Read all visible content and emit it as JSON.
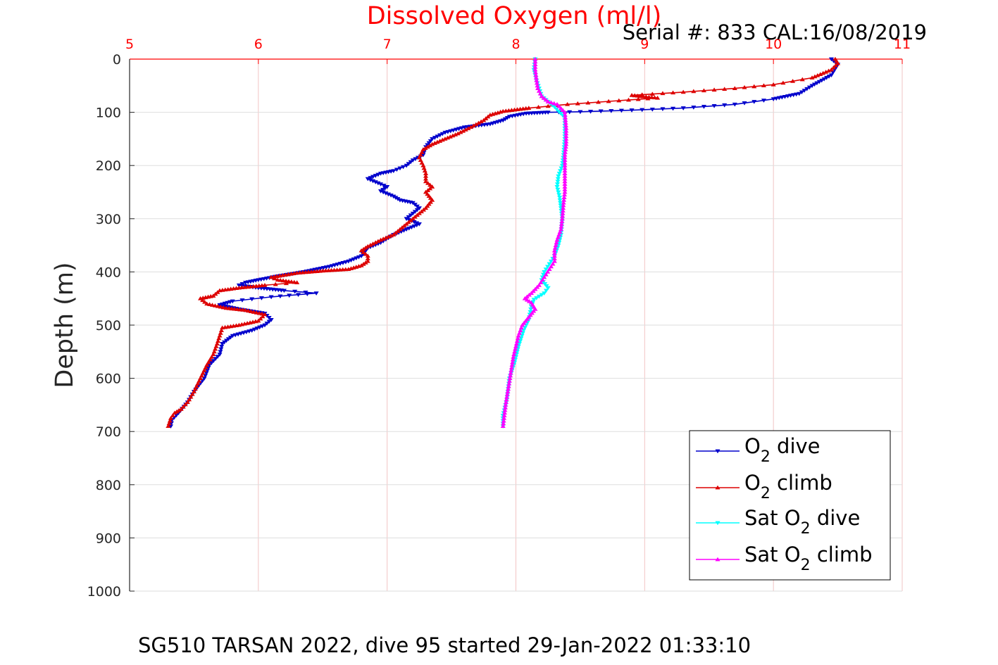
{
  "chart_data": {
    "type": "line",
    "title": "Dissolved Oxygen (ml/l)",
    "serial_text": "Serial #: 833  CAL:16/08/2019",
    "ylabel": "Depth (m)",
    "caption": "SG510 TARSAN 2022, dive 95 started 29-Jan-2022 01:33:10",
    "x_axis": {
      "position": "top",
      "range": [
        5,
        11
      ],
      "ticks": [
        "5",
        "6",
        "7",
        "8",
        "9",
        "10",
        "11"
      ],
      "color": "#ff0000"
    },
    "y_axis": {
      "reversed": true,
      "range": [
        0,
        1000
      ],
      "ticks": [
        "0",
        "100",
        "200",
        "300",
        "400",
        "500",
        "600",
        "700",
        "800",
        "900",
        "1000"
      ]
    },
    "grid": true,
    "legend": {
      "placement": "lower-right",
      "entries": [
        {
          "prefix": "O",
          "sub": "2",
          "suffix": " dive"
        },
        {
          "prefix": "O",
          "sub": "2",
          "suffix": " climb"
        },
        {
          "prefix": "Sat O",
          "sub": "2",
          "suffix": " dive"
        },
        {
          "prefix": "Sat O",
          "sub": "2",
          "suffix": " climb"
        }
      ]
    },
    "series": [
      {
        "color": "#0000cc",
        "marker": "triangle-down",
        "points": [
          [
            10.45,
            0
          ],
          [
            10.5,
            10
          ],
          [
            10.45,
            30
          ],
          [
            10.3,
            50
          ],
          [
            10.2,
            65
          ],
          [
            10.0,
            75
          ],
          [
            9.7,
            85
          ],
          [
            9.3,
            92
          ],
          [
            8.9,
            96
          ],
          [
            8.5,
            99
          ],
          [
            8.25,
            100
          ],
          [
            8.08,
            102
          ],
          [
            7.95,
            108
          ],
          [
            7.9,
            115
          ],
          [
            7.8,
            122
          ],
          [
            7.6,
            128
          ],
          [
            7.45,
            138
          ],
          [
            7.35,
            150
          ],
          [
            7.3,
            165
          ],
          [
            7.28,
            180
          ],
          [
            7.2,
            190
          ],
          [
            7.15,
            200
          ],
          [
            7.1,
            205
          ],
          [
            7.05,
            210
          ],
          [
            6.95,
            215
          ],
          [
            6.85,
            225
          ],
          [
            6.95,
            235
          ],
          [
            7.0,
            240
          ],
          [
            6.95,
            248
          ],
          [
            7.05,
            258
          ],
          [
            7.1,
            265
          ],
          [
            7.2,
            270
          ],
          [
            7.25,
            280
          ],
          [
            7.2,
            290
          ],
          [
            7.15,
            300
          ],
          [
            7.25,
            310
          ],
          [
            7.15,
            320
          ],
          [
            7.05,
            330
          ],
          [
            6.95,
            345
          ],
          [
            6.85,
            355
          ],
          [
            6.8,
            370
          ],
          [
            6.7,
            380
          ],
          [
            6.55,
            390
          ],
          [
            6.35,
            400
          ],
          [
            6.15,
            408
          ],
          [
            6.0,
            415
          ],
          [
            5.9,
            420
          ],
          [
            5.85,
            425
          ],
          [
            6.0,
            430
          ],
          [
            6.2,
            435
          ],
          [
            6.45,
            440
          ],
          [
            6.1,
            447
          ],
          [
            5.8,
            455
          ],
          [
            5.7,
            462
          ],
          [
            5.85,
            470
          ],
          [
            6.05,
            478
          ],
          [
            6.1,
            490
          ],
          [
            6.05,
            500
          ],
          [
            5.95,
            510
          ],
          [
            5.8,
            520
          ],
          [
            5.72,
            535
          ],
          [
            5.7,
            555
          ],
          [
            5.62,
            575
          ],
          [
            5.58,
            600
          ],
          [
            5.5,
            625
          ],
          [
            5.45,
            645
          ],
          [
            5.38,
            665
          ],
          [
            5.33,
            678
          ],
          [
            5.32,
            690
          ]
        ]
      },
      {
        "color": "#dd0000",
        "marker": "triangle-up",
        "points": [
          [
            5.3,
            690
          ],
          [
            5.32,
            675
          ],
          [
            5.35,
            665
          ],
          [
            5.4,
            658
          ],
          [
            5.45,
            645
          ],
          [
            5.5,
            625
          ],
          [
            5.55,
            600
          ],
          [
            5.6,
            575
          ],
          [
            5.65,
            555
          ],
          [
            5.68,
            535
          ],
          [
            5.7,
            520
          ],
          [
            5.72,
            505
          ],
          [
            5.85,
            500
          ],
          [
            6.0,
            492
          ],
          [
            6.05,
            480
          ],
          [
            5.9,
            472
          ],
          [
            5.75,
            468
          ],
          [
            5.6,
            460
          ],
          [
            5.55,
            450
          ],
          [
            5.65,
            445
          ],
          [
            5.7,
            435
          ],
          [
            5.85,
            430
          ],
          [
            6.05,
            425
          ],
          [
            6.3,
            420
          ],
          [
            6.15,
            415
          ],
          [
            6.1,
            410
          ],
          [
            6.3,
            402
          ],
          [
            6.5,
            398
          ],
          [
            6.7,
            395
          ],
          [
            6.8,
            388
          ],
          [
            6.85,
            380
          ],
          [
            6.85,
            370
          ],
          [
            6.8,
            360
          ],
          [
            6.85,
            352
          ],
          [
            6.95,
            340
          ],
          [
            7.05,
            330
          ],
          [
            7.1,
            320
          ],
          [
            7.15,
            310
          ],
          [
            7.2,
            300
          ],
          [
            7.25,
            290
          ],
          [
            7.3,
            280
          ],
          [
            7.35,
            265
          ],
          [
            7.3,
            250
          ],
          [
            7.35,
            240
          ],
          [
            7.3,
            230
          ],
          [
            7.3,
            215
          ],
          [
            7.28,
            200
          ],
          [
            7.25,
            185
          ],
          [
            7.28,
            170
          ],
          [
            7.35,
            160
          ],
          [
            7.45,
            150
          ],
          [
            7.55,
            140
          ],
          [
            7.65,
            128
          ],
          [
            7.75,
            115
          ],
          [
            7.8,
            105
          ],
          [
            7.9,
            98
          ],
          [
            8.1,
            92
          ],
          [
            8.4,
            85
          ],
          [
            8.8,
            78
          ],
          [
            9.1,
            73
          ],
          [
            8.9,
            68
          ],
          [
            9.3,
            62
          ],
          [
            9.7,
            55
          ],
          [
            10.0,
            48
          ],
          [
            10.3,
            35
          ],
          [
            10.45,
            20
          ],
          [
            10.5,
            8
          ],
          [
            10.48,
            0
          ]
        ]
      },
      {
        "color": "#00ffff",
        "marker": "triangle-down",
        "points": [
          [
            8.15,
            0
          ],
          [
            8.14,
            20
          ],
          [
            8.16,
            40
          ],
          [
            8.18,
            55
          ],
          [
            8.2,
            70
          ],
          [
            8.3,
            90
          ],
          [
            8.38,
            110
          ],
          [
            8.38,
            150
          ],
          [
            8.37,
            180
          ],
          [
            8.36,
            200
          ],
          [
            8.33,
            220
          ],
          [
            8.32,
            240
          ],
          [
            8.34,
            260
          ],
          [
            8.35,
            280
          ],
          [
            8.36,
            300
          ],
          [
            8.35,
            330
          ],
          [
            8.33,
            350
          ],
          [
            8.3,
            370
          ],
          [
            8.26,
            385
          ],
          [
            8.22,
            400
          ],
          [
            8.2,
            415
          ],
          [
            8.25,
            430
          ],
          [
            8.22,
            440
          ],
          [
            8.14,
            452
          ],
          [
            8.12,
            465
          ],
          [
            8.1,
            490
          ],
          [
            8.06,
            510
          ],
          [
            8.02,
            540
          ],
          [
            7.99,
            570
          ],
          [
            7.95,
            600
          ],
          [
            7.93,
            640
          ],
          [
            7.9,
            670
          ],
          [
            7.9,
            690
          ]
        ]
      },
      {
        "color": "#ff00ff",
        "marker": "triangle-up",
        "points": [
          [
            7.9,
            690
          ],
          [
            7.91,
            670
          ],
          [
            7.92,
            650
          ],
          [
            7.94,
            620
          ],
          [
            7.96,
            590
          ],
          [
            7.98,
            560
          ],
          [
            8.0,
            540
          ],
          [
            8.02,
            520
          ],
          [
            8.05,
            500
          ],
          [
            8.1,
            485
          ],
          [
            8.15,
            470
          ],
          [
            8.12,
            458
          ],
          [
            8.07,
            450
          ],
          [
            8.12,
            440
          ],
          [
            8.18,
            425
          ],
          [
            8.22,
            410
          ],
          [
            8.26,
            395
          ],
          [
            8.3,
            380
          ],
          [
            8.3,
            360
          ],
          [
            8.32,
            340
          ],
          [
            8.35,
            320
          ],
          [
            8.36,
            300
          ],
          [
            8.37,
            270
          ],
          [
            8.38,
            250
          ],
          [
            8.38,
            230
          ],
          [
            8.38,
            200
          ],
          [
            8.38,
            180
          ],
          [
            8.39,
            160
          ],
          [
            8.39,
            130
          ],
          [
            8.38,
            100
          ],
          [
            8.32,
            85
          ],
          [
            8.25,
            80
          ],
          [
            8.2,
            70
          ],
          [
            8.17,
            55
          ],
          [
            8.16,
            40
          ],
          [
            8.15,
            20
          ],
          [
            8.15,
            0
          ]
        ]
      }
    ]
  }
}
